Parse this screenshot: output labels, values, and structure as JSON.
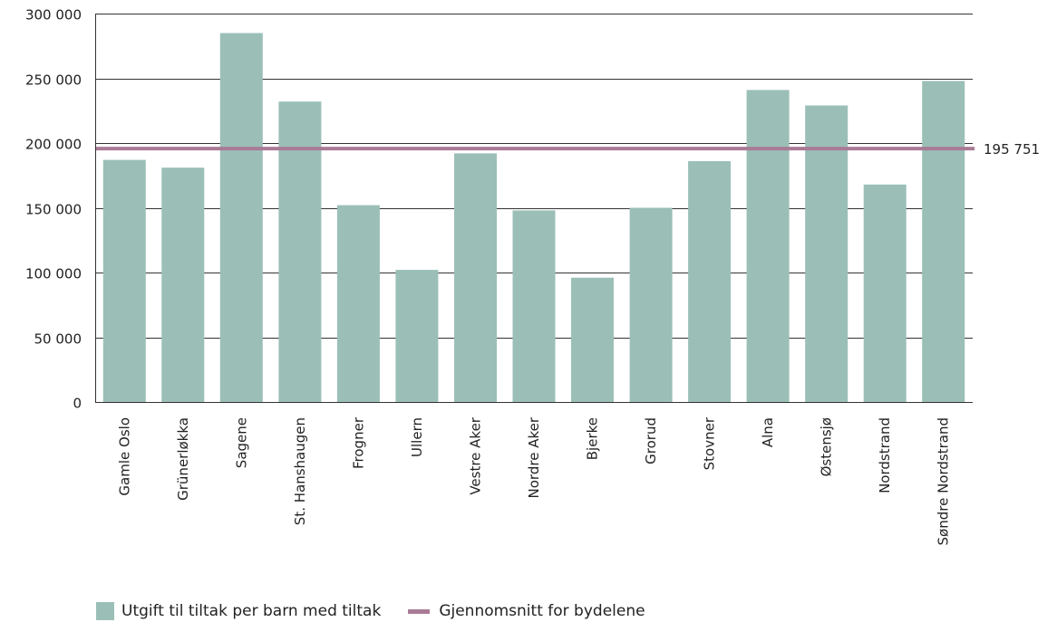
{
  "chart_data": {
    "type": "bar",
    "categories": [
      "Gamle Oslo",
      "Grünerløkka",
      "Sagene",
      "St. Hanshaugen",
      "Frogner",
      "Ullern",
      "Vestre Aker",
      "Nordre Aker",
      "Bjerke",
      "Grorud",
      "Stovner",
      "Alna",
      "Østensjø",
      "Nordstrand",
      "Søndre Nordstrand"
    ],
    "series": [
      {
        "name": "Utgift til tiltak per barn med tiltak",
        "color": "#9bbfb7",
        "values": [
          187000,
          181000,
          285000,
          232000,
          152000,
          102000,
          192000,
          148000,
          96000,
          150000,
          186000,
          241000,
          229000,
          168000,
          248000
        ]
      }
    ],
    "reference_line": {
      "name": "Gjennomsnitt for bydelene",
      "value": 195751,
      "label": "195 751",
      "color": "#a97b96"
    },
    "y_ticks": [
      {
        "value": 0,
        "label": "0"
      },
      {
        "value": 50000,
        "label": "50 000"
      },
      {
        "value": 100000,
        "label": "100 000"
      },
      {
        "value": 150000,
        "label": "150 000"
      },
      {
        "value": 200000,
        "label": "200 000"
      },
      {
        "value": 250000,
        "label": "250 000"
      },
      {
        "value": 300000,
        "label": "300 000"
      }
    ],
    "ylim": [
      0,
      300000
    ],
    "grid": true,
    "legend_position": "bottom-left",
    "title": "",
    "xlabel": "",
    "ylabel": ""
  },
  "legend": {
    "bars_label": "Utgift til tiltak per barn med tiltak",
    "line_label": "Gjennomsnitt for bydelene"
  }
}
